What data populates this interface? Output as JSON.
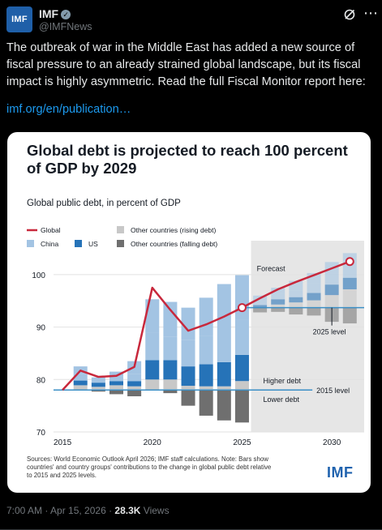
{
  "post": {
    "avatar_text": "IMF",
    "author_name": "IMF",
    "author_handle": "@IMFNews",
    "text": "The outbreak of war in the Middle East has added a new source of fiscal pressure to an already strained global landscape, but its fiscal impact is highly asymmetric. Read the full Fiscal Monitor report here:",
    "link": "imf.org/en/publication…",
    "time": "7:00 AM · Apr 15, 2026 ·",
    "views": "28.3K",
    "views_label": "Views"
  },
  "card": {
    "title": "Global debt is projected to reach 100 percent of GDP by 2029",
    "subtitle": "Global public debt, in percent of GDP",
    "notes": "Sources: World Economic Outlook April 2026; IMF staff calculations. Note: Bars show countries' and country groups' contributions to the change in global public debt relative to 2015 and 2025 levels.",
    "logo_text": "IMF"
  },
  "chart_data": {
    "type": "bar",
    "x": [
      2015,
      2016,
      2017,
      2018,
      2019,
      2020,
      2021,
      2022,
      2023,
      2024,
      2025,
      2026,
      2027,
      2028,
      2029,
      2030,
      2031
    ],
    "xticks": [
      2015,
      2020,
      2025,
      2030
    ],
    "yticks": [
      70,
      80,
      90,
      100
    ],
    "ylim": [
      70,
      104
    ],
    "xlim": [
      2014.5,
      2031.8
    ],
    "series": [
      {
        "name": "Global",
        "type": "line",
        "color": "#c8283c",
        "values": [
          78.0,
          81.7,
          80.5,
          80.7,
          82.4,
          97.5,
          93.3,
          89.3,
          90.5,
          92.0,
          93.7,
          95.5,
          97.2,
          98.6,
          99.9,
          101.2,
          102.5
        ]
      },
      {
        "name": "China",
        "color": "#a3c4e3"
      },
      {
        "name": "US",
        "color": "#2673b8"
      },
      {
        "name": "Other countries (rising debt)",
        "color": "#c8c8c8"
      },
      {
        "name": "Other countries (falling debt)",
        "color": "#6f6f6f"
      }
    ],
    "stacks": [
      {
        "x": 2016,
        "base": 78,
        "rising": [
          0.9,
          0.9,
          1.3,
          1.4
        ],
        "falling": [
          0.0
        ]
      },
      {
        "x": 2017,
        "base": 78,
        "rising": [
          0.6,
          0.8,
          1.0,
          0
        ],
        "falling": [
          -0.3
        ]
      },
      {
        "x": 2018,
        "base": 78,
        "rising": [
          0.9,
          0.8,
          0.9,
          0.9
        ],
        "falling": [
          -0.8
        ]
      },
      {
        "x": 2019,
        "base": 78,
        "rising": [
          0.7,
          1.0,
          1.3,
          2.5
        ],
        "falling": [
          -1.2
        ]
      },
      {
        "x": 2020,
        "base": 78,
        "rising": [
          2.0,
          3.7,
          5.3,
          6.3
        ],
        "falling": [
          0
        ]
      },
      {
        "x": 2021,
        "base": 78,
        "rising": [
          2.0,
          3.7,
          4.5,
          6.6
        ],
        "falling": [
          -0.6
        ]
      },
      {
        "x": 2022,
        "base": 78,
        "rising": [
          0.8,
          3.7,
          5.0,
          6.2
        ],
        "falling": [
          -3.0
        ]
      },
      {
        "x": 2023,
        "base": 78,
        "rising": [
          0.7,
          4.2,
          5.4,
          7.3
        ],
        "falling": [
          -4.9
        ]
      },
      {
        "x": 2024,
        "base": 78,
        "rising": [
          0.7,
          4.6,
          5.4,
          9.5
        ],
        "falling": [
          -5.8
        ]
      },
      {
        "x": 2025,
        "base": 78,
        "rising": [
          1.7,
          5.0,
          6.7,
          8.5
        ],
        "falling": [
          -6.2
        ]
      },
      {
        "x": 2026,
        "base": 93.7,
        "rising": [
          0.0,
          0.5,
          1.0,
          0.8
        ],
        "falling": [
          -0.9
        ]
      },
      {
        "x": 2027,
        "base": 93.7,
        "rising": [
          0.6,
          1.0,
          1.0,
          1.2
        ],
        "falling": [
          -0.8
        ]
      },
      {
        "x": 2028,
        "base": 93.7,
        "rising": [
          1.0,
          1.0,
          1.3,
          1.8
        ],
        "falling": [
          -1.3
        ]
      },
      {
        "x": 2029,
        "base": 93.7,
        "rising": [
          1.4,
          1.4,
          1.8,
          2.0
        ],
        "falling": [
          -1.5
        ]
      },
      {
        "x": 2030,
        "base": 93.7,
        "rising": [
          2.4,
          2.0,
          2.1,
          2.2
        ],
        "falling": [
          -2.7
        ]
      },
      {
        "x": 2031,
        "base": 93.7,
        "rising": [
          3.5,
          2.2,
          2.6,
          2.1
        ],
        "falling": [
          -3.0
        ]
      }
    ],
    "reference_lines": [
      {
        "y": 78.0,
        "label": "2015 level",
        "color": "#3b8fc6"
      },
      {
        "y": 93.7,
        "label": "2025 level",
        "color": "#3b8fc6"
      }
    ],
    "annotations": [
      "Forecast",
      "Higher debt",
      "Lower debt"
    ],
    "forecast_start": 2025.5
  }
}
